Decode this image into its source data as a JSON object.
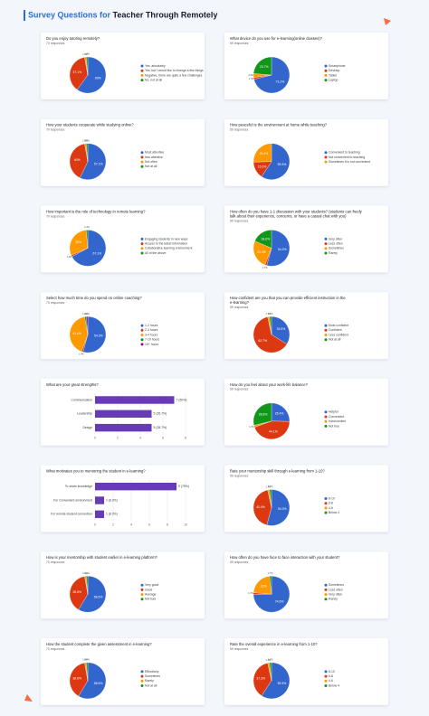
{
  "header": {
    "title_part1": "Survey Questions for",
    "title_part2": "Teacher Through  Remotely"
  },
  "chart_data": [
    {
      "type": "pie",
      "title": "Do you enjoy tutoring remotely?",
      "subtitle": "70 responses",
      "categories": [
        "Yes, absolutely",
        "Yes, but I would like to change a few things",
        "Negative, there are quite a few challenges",
        "No, not at all"
      ],
      "values": [
        60,
        37.1,
        1.4,
        1.4
      ],
      "value_labels": [
        "60%",
        "37.1%",
        "1.4%",
        "1.4%"
      ],
      "colors": [
        "#3366cc",
        "#dc3912",
        "#ff9900",
        "#109618"
      ]
    },
    {
      "type": "pie",
      "title": "What device do you use for e-learning(online classes)?",
      "subtitle": "59 responses",
      "categories": [
        "Smartphone",
        "Desktop",
        "Tablet",
        "Laptop"
      ],
      "values": [
        71.2,
        1.7,
        3.4,
        23.7
      ],
      "value_labels": [
        "71.2%",
        "1.7%",
        "3.4%",
        "23.7%"
      ],
      "colors": [
        "#3366cc",
        "#dc3912",
        "#ff9900",
        "#109618"
      ]
    },
    {
      "type": "pie",
      "title": "How your students cooperate while studying online?",
      "subtitle": "70 responses",
      "categories": [
        "Most attentive",
        "less attentive",
        "Not often",
        "Not at all"
      ],
      "values": [
        57.1,
        40,
        1.4,
        1.4
      ],
      "value_labels": [
        "57.1%",
        "40%",
        "1.4%",
        "1.4%"
      ],
      "colors": [
        "#3366cc",
        "#dc3912",
        "#ff9900",
        "#109618"
      ]
    },
    {
      "type": "pie",
      "title": "How peaceful is the environment at home while teaching?",
      "subtitle": "59 responses",
      "categories": [
        "Convenient to teaching",
        "Not convenient to teaching",
        "Sometimes it is not convenient"
      ],
      "values": [
        59.3,
        15.3,
        25.4
      ],
      "value_labels": [
        "59.3%",
        "15.3%",
        "25.4%"
      ],
      "colors": [
        "#3366cc",
        "#dc3912",
        "#ff9900"
      ]
    },
    {
      "type": "pie",
      "title": "How important is the role of technology in remote learning?",
      "subtitle": "70 responses",
      "categories": [
        "Engaging students in new ways",
        "Access to the latest information",
        "Collaborative learning environment",
        "All of the above"
      ],
      "values": [
        67.1,
        1.4,
        30,
        1.4
      ],
      "value_labels": [
        "67.1%",
        "1.4%",
        "30%",
        "1.4%"
      ],
      "colors": [
        "#3366cc",
        "#dc3912",
        "#ff9900",
        "#109618"
      ]
    },
    {
      "type": "pie",
      "title": "How often do you have 1-1 discussion with your students? (students can freely talk about their experience, concerns, or have a casual chat with you)",
      "subtitle": "59 responses",
      "categories": [
        "Very often",
        "Less often",
        "Sometimes",
        "Rarely"
      ],
      "values": [
        54.2,
        1.7,
        25.4,
        18.6
      ],
      "value_labels": [
        "54.2%",
        "1.7%",
        "25.4%",
        "18.6%"
      ],
      "colors": [
        "#3366cc",
        "#dc3912",
        "#ff9900",
        "#109618"
      ]
    },
    {
      "type": "pie",
      "title": "Select how much time do you spend on online coaching?",
      "subtitle": "70 responses",
      "categories": [
        "1-2 hours",
        "2-3 hours",
        "3-4 hours",
        "7-10 hours",
        "10+ hours"
      ],
      "values": [
        54.3,
        1.4,
        41.4,
        1.4,
        1.4
      ],
      "value_labels": [
        "54.3%",
        "1.4%",
        "41.4%",
        "1.4%",
        "1.4%"
      ],
      "colors": [
        "#3366cc",
        "#dc3912",
        "#ff9900",
        "#109618",
        "#990099"
      ]
    },
    {
      "type": "pie",
      "title": "How confident are you that you can provide efficient instruction in the e-learning?",
      "subtitle": "59 responses",
      "categories": [
        "Most confident",
        "Confident",
        "Less confident",
        "Not at all"
      ],
      "values": [
        33.9,
        62.7,
        1.7,
        1.7
      ],
      "value_labels": [
        "33.9%",
        "62.7%",
        "1.7%",
        "1.7%"
      ],
      "colors": [
        "#3366cc",
        "#dc3912",
        "#ff9900",
        "#109618"
      ]
    },
    {
      "type": "bar",
      "title": "What are your great strengths?",
      "categories": [
        "Communication",
        "Leadership",
        "Design"
      ],
      "values": [
        7,
        5,
        5
      ],
      "value_labels": [
        "7 (50%)",
        "5 (35.7%)",
        "5 (35.7%)"
      ],
      "color": "#673ab7",
      "xlim": [
        0,
        8
      ],
      "xticks": [
        0,
        2,
        4,
        6,
        8
      ]
    },
    {
      "type": "pie",
      "title": "How do you feel about your work-life balance?",
      "subtitle": "59 responses",
      "categories": [
        "Helpful",
        "Convenient",
        "Inconvenient",
        "Not true"
      ],
      "values": [
        25.4,
        44.1,
        1.7,
        28.8
      ],
      "value_labels": [
        "25.4%",
        "44.1%",
        "1.7%",
        "28.8%"
      ],
      "colors": [
        "#3366cc",
        "#dc3912",
        "#ff9900",
        "#109618"
      ]
    },
    {
      "type": "bar",
      "title": "What motivates you to mentoring the student in e-learning?",
      "categories": [
        "To share knowledge",
        "For Convenient environment",
        "For remote student connection"
      ],
      "values": [
        9,
        1,
        1
      ],
      "value_labels": [
        "9 (75%)",
        "1 (8.3%)",
        "1 (8.3%)"
      ],
      "color": "#673ab7",
      "xlim": [
        0,
        10
      ],
      "xticks": [
        0,
        2,
        4,
        6,
        8,
        10
      ]
    },
    {
      "type": "pie",
      "title": "Rate your mentorship skill through e-learning from 1-10?",
      "subtitle": "59 responses",
      "categories": [
        "8-10",
        "6-8",
        "4-6",
        "Below 4"
      ],
      "values": [
        54.2,
        42.4,
        1.7,
        1.7
      ],
      "value_labels": [
        "54.2%",
        "42.4%",
        "1.7%",
        "1.7%"
      ],
      "colors": [
        "#3366cc",
        "#dc3912",
        "#ff9900",
        "#109618"
      ]
    },
    {
      "type": "pie",
      "title": "How is your mentorship with student earlier in e-learning platform?",
      "subtitle": "70 responses",
      "categories": [
        "Very good",
        "Good",
        "Average",
        "Not bad"
      ],
      "values": [
        58.6,
        38.6,
        1.4,
        1.4
      ],
      "value_labels": [
        "58.6%",
        "38.6%",
        "1.4%",
        "1.4%"
      ],
      "colors": [
        "#3366cc",
        "#dc3912",
        "#ff9900",
        "#109618"
      ]
    },
    {
      "type": "pie",
      "title": "How often do you have face to face  interaction with your student?",
      "subtitle": "59 responses",
      "categories": [
        "Sometimes",
        "Less often",
        "Very often",
        "Rarely"
      ],
      "values": [
        74.6,
        1.7,
        22,
        1.7
      ],
      "value_labels": [
        "74.6%",
        "1.7%",
        "22%",
        "1.7%"
      ],
      "colors": [
        "#3366cc",
        "#dc3912",
        "#ff9900",
        "#109618"
      ]
    },
    {
      "type": "pie",
      "title": "How the student complete the given assessment in e-learning?",
      "subtitle": "70 responses",
      "categories": [
        "Effectively",
        "Sometimes",
        "Rarely",
        "Not at all"
      ],
      "values": [
        58.6,
        38.6,
        1.4,
        1.4
      ],
      "value_labels": [
        "58.6%",
        "38.6%",
        "1.4%",
        "1.4%"
      ],
      "colors": [
        "#3366cc",
        "#dc3912",
        "#ff9900",
        "#109618"
      ]
    },
    {
      "type": "pie",
      "title": "Rate the overall experience in e-learning from 1-10?",
      "subtitle": "59 responses",
      "categories": [
        "8-10",
        "6-8",
        "4-6",
        "Below 4"
      ],
      "values": [
        59.3,
        37.3,
        1.7,
        1.7
      ],
      "value_labels": [
        "59.3%",
        "37.3%",
        "1.7%",
        "1.7%"
      ],
      "colors": [
        "#3366cc",
        "#dc3912",
        "#ff9900",
        "#109618"
      ]
    }
  ]
}
